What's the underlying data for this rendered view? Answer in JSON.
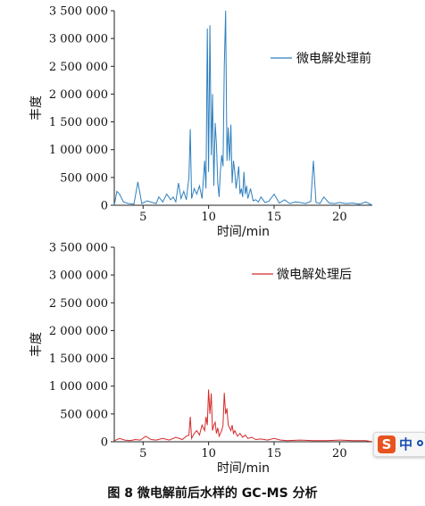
{
  "figure_caption": "图 8   微电解前后水样的 GC-MS 分析",
  "ime_toolbar": {
    "logo_glyph": "S",
    "language_label": "中",
    "icon": "sogou-ime-icon"
  },
  "chart_data": [
    {
      "type": "line",
      "ylabel": "丰度",
      "xlabel": "时间/min",
      "xlim": [
        2.8,
        22.5
      ],
      "ylim": [
        0,
        3500000
      ],
      "xticks": [
        5,
        10,
        15,
        20
      ],
      "yticks": [
        0,
        500000,
        1000000,
        1500000,
        2000000,
        2500000,
        3000000,
        3500000
      ],
      "ytick_labels": [
        "0",
        "500 000",
        "1 000 000",
        "1 500 000",
        "2 000 000",
        "2 500 000",
        "3 000 000",
        "3 500 000"
      ],
      "xtick_labels": [
        "5",
        "10",
        "15",
        "20"
      ],
      "legend_position": "top-right",
      "grid": false,
      "series": [
        {
          "name": "微电解处理前",
          "color": "#2e7fbd",
          "x": [
            2.8,
            3.0,
            3.2,
            3.5,
            3.9,
            4.3,
            4.6,
            4.9,
            5.3,
            5.7,
            6.0,
            6.2,
            6.5,
            6.8,
            7.1,
            7.3,
            7.5,
            7.7,
            7.9,
            8.1,
            8.3,
            8.5,
            8.6,
            8.7,
            8.9,
            9.1,
            9.3,
            9.5,
            9.7,
            9.8,
            9.9,
            10.0,
            10.1,
            10.2,
            10.3,
            10.4,
            10.5,
            10.6,
            10.7,
            10.8,
            10.9,
            11.0,
            11.1,
            11.2,
            11.3,
            11.4,
            11.5,
            11.6,
            11.7,
            11.8,
            11.9,
            12.0,
            12.1,
            12.2,
            12.3,
            12.4,
            12.5,
            12.6,
            12.7,
            12.8,
            12.9,
            13.0,
            13.2,
            13.4,
            13.6,
            13.8,
            14.0,
            14.3,
            14.6,
            15.0,
            15.4,
            15.8,
            16.2,
            16.6,
            17.0,
            17.4,
            17.8,
            18.0,
            18.2,
            18.5,
            18.8,
            19.2,
            19.6,
            20.0,
            20.5,
            21.0,
            21.5,
            22.0,
            22.5
          ],
          "y": [
            0,
            250000,
            200000,
            60000,
            30000,
            20000,
            420000,
            30000,
            80000,
            50000,
            30000,
            150000,
            60000,
            200000,
            100000,
            150000,
            60000,
            400000,
            120000,
            250000,
            100000,
            500000,
            1370000,
            120000,
            300000,
            200000,
            350000,
            120000,
            800000,
            300000,
            3180000,
            600000,
            3240000,
            900000,
            2000000,
            350000,
            1480000,
            1100000,
            400000,
            150000,
            600000,
            900000,
            700000,
            2500000,
            3500000,
            800000,
            1400000,
            800000,
            1450000,
            400000,
            800000,
            600000,
            300000,
            500000,
            700000,
            200000,
            300000,
            150000,
            600000,
            200000,
            350000,
            120000,
            300000,
            80000,
            100000,
            60000,
            150000,
            50000,
            70000,
            200000,
            40000,
            100000,
            30000,
            60000,
            50000,
            30000,
            70000,
            800000,
            50000,
            30000,
            150000,
            40000,
            30000,
            50000,
            30000,
            40000,
            20000,
            60000,
            0
          ]
        }
      ]
    },
    {
      "type": "line",
      "ylabel": "丰度",
      "xlabel": "时间/min",
      "xlim": [
        2.8,
        22.5
      ],
      "ylim": [
        0,
        3500000
      ],
      "xticks": [
        5,
        10,
        15,
        20
      ],
      "yticks": [
        0,
        500000,
        1000000,
        1500000,
        2000000,
        2500000,
        3000000,
        3500000
      ],
      "ytick_labels": [
        "0",
        "500 000",
        "1 000 000",
        "1 500 000",
        "2 000 000",
        "2 500 000",
        "3 000 000",
        "3 500 000"
      ],
      "xtick_labels": [
        "5",
        "10",
        "15",
        "20"
      ],
      "legend_position": "top-right",
      "grid": false,
      "series": [
        {
          "name": "微电解处理后",
          "color": "#d42a2a",
          "x": [
            2.8,
            3.2,
            3.6,
            4.0,
            4.4,
            4.8,
            5.2,
            5.6,
            6.0,
            6.5,
            7.0,
            7.5,
            8.0,
            8.3,
            8.5,
            8.6,
            8.7,
            8.9,
            9.1,
            9.3,
            9.5,
            9.7,
            9.8,
            9.9,
            10.0,
            10.1,
            10.2,
            10.3,
            10.4,
            10.5,
            10.6,
            10.7,
            10.8,
            10.9,
            11.0,
            11.1,
            11.2,
            11.3,
            11.4,
            11.5,
            11.6,
            11.7,
            11.8,
            11.9,
            12.0,
            12.2,
            12.4,
            12.6,
            12.8,
            13.0,
            13.3,
            13.6,
            14.0,
            14.5,
            15.0,
            15.5,
            16.0,
            17.0,
            18.0,
            19.0,
            20.0,
            21.0,
            22.0,
            22.5
          ],
          "y": [
            20000,
            60000,
            30000,
            20000,
            40000,
            30000,
            100000,
            40000,
            30000,
            60000,
            30000,
            80000,
            40000,
            100000,
            120000,
            450000,
            60000,
            150000,
            200000,
            120000,
            300000,
            200000,
            450000,
            300000,
            940000,
            500000,
            870000,
            200000,
            300000,
            350000,
            150000,
            250000,
            100000,
            150000,
            200000,
            300000,
            880000,
            500000,
            600000,
            300000,
            250000,
            200000,
            300000,
            150000,
            200000,
            100000,
            150000,
            80000,
            120000,
            60000,
            80000,
            40000,
            50000,
            30000,
            60000,
            30000,
            20000,
            30000,
            20000,
            20000,
            30000,
            20000,
            20000,
            0
          ]
        }
      ]
    }
  ]
}
